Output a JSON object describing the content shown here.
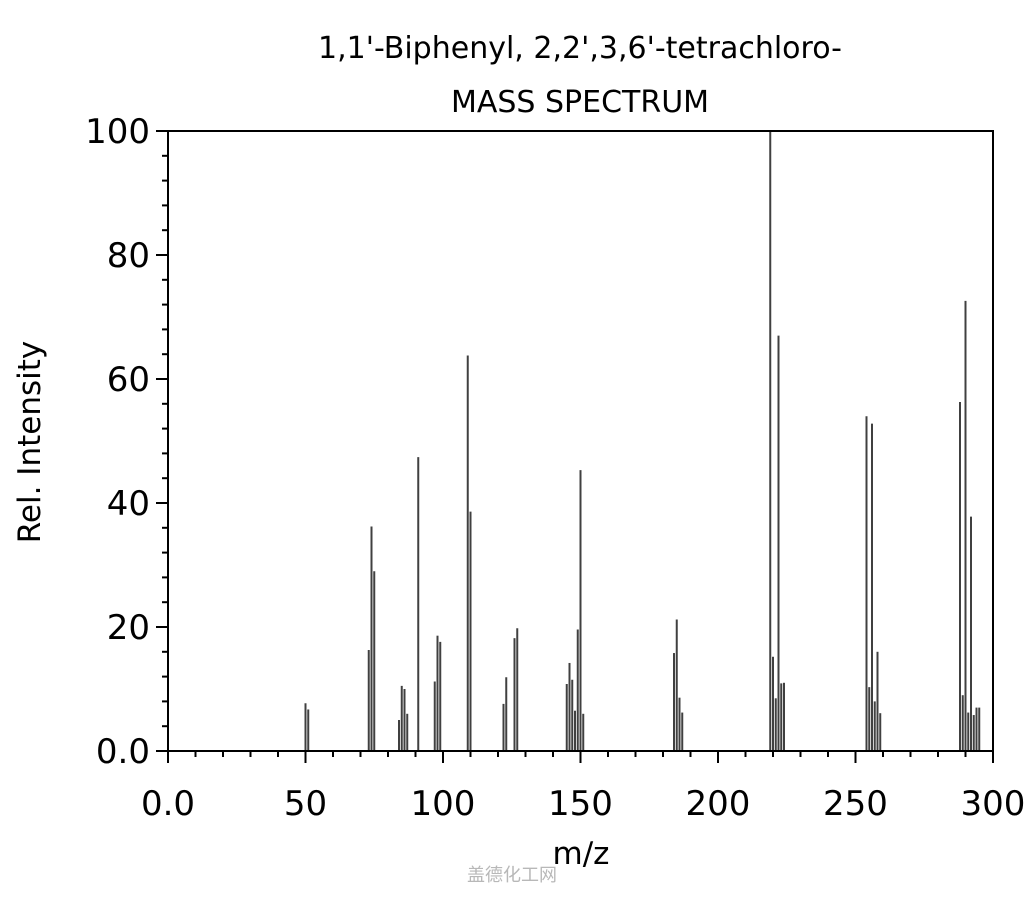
{
  "chart_data": {
    "type": "bar",
    "title": "1,1'-Biphenyl, 2,2',3,6'-tetrachloro-",
    "subtitle": "MASS SPECTRUM",
    "xlabel": "m/z",
    "ylabel": "Rel. Intensity",
    "xlim": [
      0,
      300
    ],
    "ylim": [
      0,
      100
    ],
    "x_ticks": [
      "0.0",
      "50",
      "100",
      "150",
      "200",
      "250",
      "300"
    ],
    "y_ticks": [
      "0.0",
      "20",
      "40",
      "60",
      "80",
      "100"
    ],
    "grid": false,
    "bar_color": "#404040",
    "series": [
      {
        "x": [
          50,
          51,
          73,
          74,
          75,
          84,
          85,
          86,
          87,
          91,
          97,
          98,
          99,
          109,
          110,
          122,
          123,
          126,
          127,
          145,
          146,
          147,
          148,
          149,
          150,
          151,
          184,
          185,
          186,
          187,
          219,
          220,
          221,
          222,
          223,
          224,
          254,
          255,
          256,
          257,
          258,
          259,
          288,
          289,
          290,
          291,
          292,
          293,
          294,
          295
        ],
        "y": [
          7.7,
          6.7,
          16.3,
          36.2,
          29.0,
          5.0,
          10.5,
          10.0,
          6.0,
          47.4,
          11.2,
          18.6,
          17.6,
          63.8,
          38.6,
          7.6,
          11.9,
          18.2,
          19.8,
          10.8,
          14.2,
          11.5,
          6.5,
          19.6,
          45.3,
          6.0,
          15.8,
          21.2,
          8.6,
          6.2,
          100.0,
          15.2,
          8.5,
          67.0,
          10.9,
          11.0,
          54.0,
          10.3,
          52.8,
          8.0,
          16.0,
          6.1,
          56.3,
          9.0,
          72.6,
          6.2,
          37.8,
          5.8,
          7.0,
          7.0
        ]
      }
    ]
  },
  "watermark": "盖德化工网"
}
